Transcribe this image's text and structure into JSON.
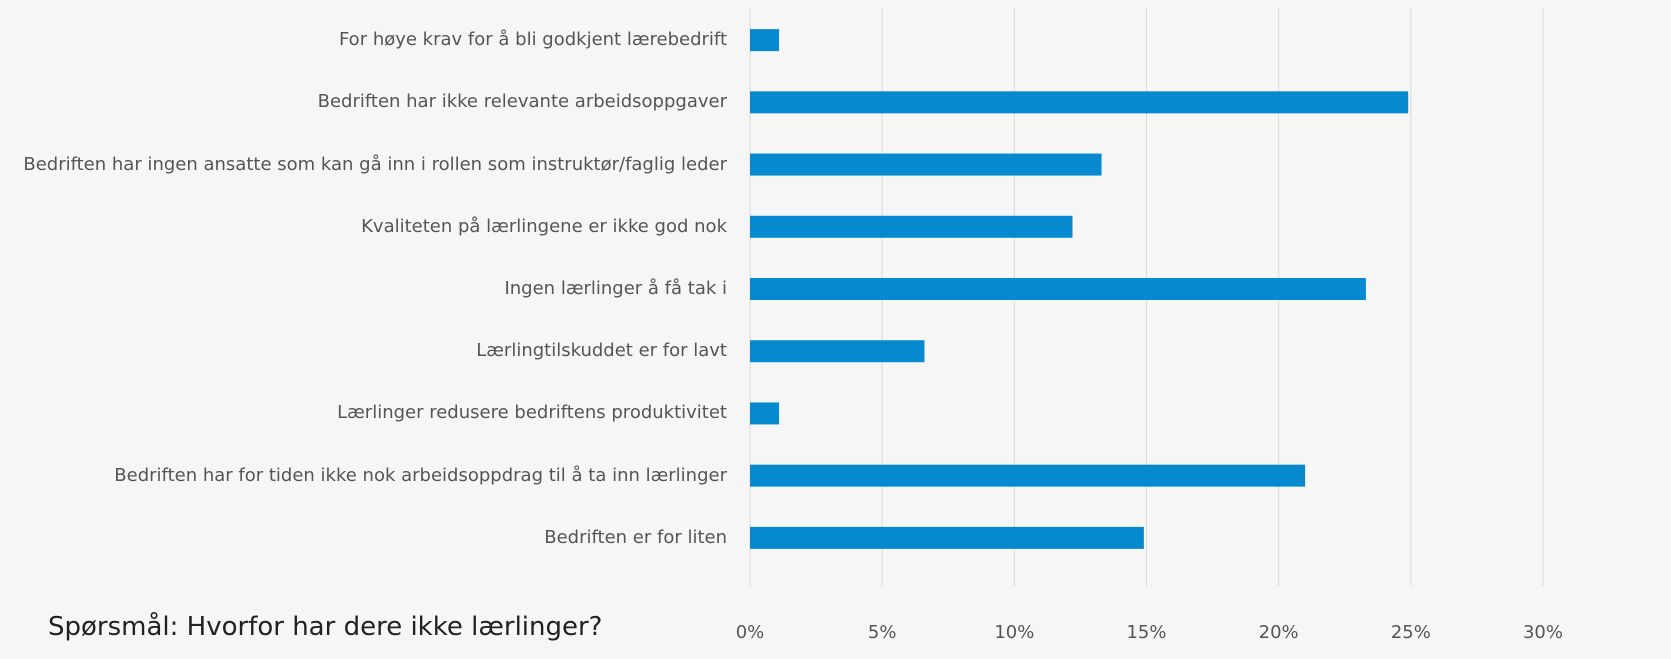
{
  "chart_data": {
    "type": "barh",
    "title": "Spørsmål: Hvorfor har dere ikke lærlinger?",
    "categories": [
      "For høye krav for å bli godkjent lærebedrift",
      "Bedriften har ikke relevante arbeidsoppgaver",
      "Bedriften har ingen ansatte som kan gå inn i rollen som instruktør/faglig leder",
      "Kvaliteten på lærlingene er ikke god nok",
      "Ingen lærlinger å få tak i",
      "Lærlingtilskuddet er for lavt",
      "Lærlinger redusere bedriftens produktivitet",
      "Bedriften har for tiden ikke nok arbeidsoppdrag til å ta inn lærlinger",
      "Bedriften er for liten"
    ],
    "values": [
      1.1,
      24.9,
      13.3,
      12.2,
      23.3,
      6.6,
      1.1,
      21.0,
      14.9
    ],
    "color": "#0789d0",
    "xlim": [
      0,
      30
    ],
    "xticks": [
      {
        "value": 0,
        "label": "0%"
      },
      {
        "value": 5,
        "label": "5%"
      },
      {
        "value": 10,
        "label": "10%"
      },
      {
        "value": 15,
        "label": "15%"
      },
      {
        "value": 20,
        "label": "20%"
      },
      {
        "value": 25,
        "label": "25%"
      },
      {
        "value": 30,
        "label": "30%"
      }
    ],
    "grid": true
  }
}
